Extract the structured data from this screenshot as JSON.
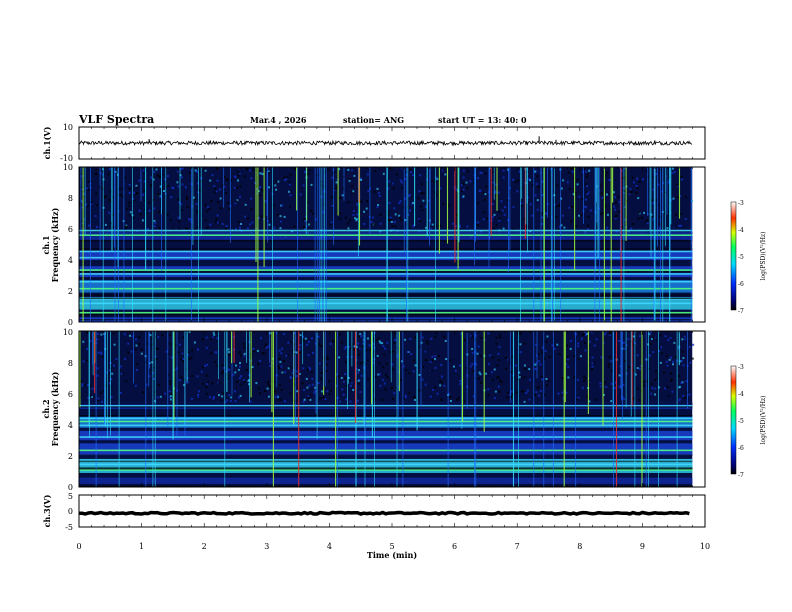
{
  "header": {
    "title": "VLF Spectra",
    "date": "Mar.4 , 2026",
    "station": "station= ANG",
    "start": "start UT = 13: 40: 0"
  },
  "colors": {
    "spec_low": "#000000",
    "spec_mid": "#1030c8",
    "spec_hi": "#30e8ff",
    "spec_peak": "#e83030",
    "trace": "#000000"
  },
  "chart_data": [
    {
      "type": "line",
      "name": "ch1-waveform",
      "ylabel": "ch.1(V)",
      "ylim": [
        -10,
        10
      ],
      "yticks": [
        "10",
        "-10"
      ],
      "x_range": [
        0,
        9.8
      ],
      "baseline": 0,
      "amplitude": 1.2,
      "spikes": [
        {
          "x": 1.12,
          "y": 2.4
        },
        {
          "x": 7.35,
          "y": 4.2
        },
        {
          "x": 7.62,
          "y": 2.0
        },
        {
          "x": 8.7,
          "y": -1.8
        },
        {
          "x": 9.2,
          "y": 1.6
        }
      ]
    },
    {
      "type": "heatmap",
      "name": "ch1-spectrogram",
      "ylabel_line1": "ch.1",
      "ylabel_line2": "Frequency (kHz)",
      "ylim": [
        0,
        10
      ],
      "yticks": [
        "0",
        "2",
        "4",
        "6",
        "8",
        "10"
      ],
      "x_range": [
        0,
        9.8
      ],
      "bands_khz": [
        {
          "y0": 0,
          "y1": 0.3,
          "level": 0.55
        },
        {
          "y0": 0.8,
          "y1": 1.6,
          "level": 0.85
        },
        {
          "y0": 1.9,
          "y1": 2.7,
          "level": 0.7
        },
        {
          "y0": 2.9,
          "y1": 3.6,
          "level": 0.55
        },
        {
          "y0": 4.0,
          "y1": 4.6,
          "level": 0.6
        },
        {
          "y0": 5.3,
          "y1": 5.8,
          "level": 0.45
        }
      ],
      "tones_khz": [
        0.6,
        1.2,
        1.5,
        2.15,
        2.6,
        3.1,
        3.35,
        4.15,
        4.55,
        5.6,
        5.9
      ],
      "spheric_density": 0.9
    },
    {
      "type": "heatmap",
      "name": "ch2-spectrogram",
      "ylabel_line1": "ch.2",
      "ylabel_line2": "Frequency (kHz)",
      "ylim": [
        0,
        10
      ],
      "yticks": [
        "0",
        "2",
        "4",
        "6",
        "8",
        "10"
      ],
      "x_range": [
        0,
        9.8
      ],
      "bands_khz": [
        {
          "y0": 0.2,
          "y1": 0.6,
          "level": 0.45
        },
        {
          "y0": 0.9,
          "y1": 1.8,
          "level": 0.85
        },
        {
          "y0": 2.0,
          "y1": 2.8,
          "level": 0.6
        },
        {
          "y0": 3.0,
          "y1": 3.6,
          "level": 0.5
        },
        {
          "y0": 3.8,
          "y1": 4.5,
          "level": 0.75
        },
        {
          "y0": 5.0,
          "y1": 5.4,
          "level": 0.4
        }
      ],
      "tones_khz": [
        1.1,
        1.45,
        1.7,
        2.35,
        3.2,
        3.95,
        4.2,
        4.4,
        5.2
      ],
      "spheric_density": 0.75
    },
    {
      "type": "line",
      "name": "ch3-waveform",
      "ylabel": "ch.3(V)",
      "ylim": [
        -5,
        5
      ],
      "yticks": [
        "5",
        "0",
        "-5"
      ],
      "x_range": [
        0,
        9.8
      ],
      "baseline": -0.7,
      "amplitude": 0.25
    }
  ],
  "xaxis": {
    "label": "Time (min)",
    "xlim": [
      0,
      10
    ],
    "ticks": [
      "0",
      "1",
      "2",
      "3",
      "4",
      "5",
      "6",
      "7",
      "8",
      "9",
      "10"
    ]
  },
  "colorbar": {
    "label": "log(PSD)(V²/Hz)",
    "range": [
      -7,
      -3
    ],
    "ticks": [
      "-3",
      "-4",
      "-5",
      "-6",
      "-7"
    ]
  }
}
